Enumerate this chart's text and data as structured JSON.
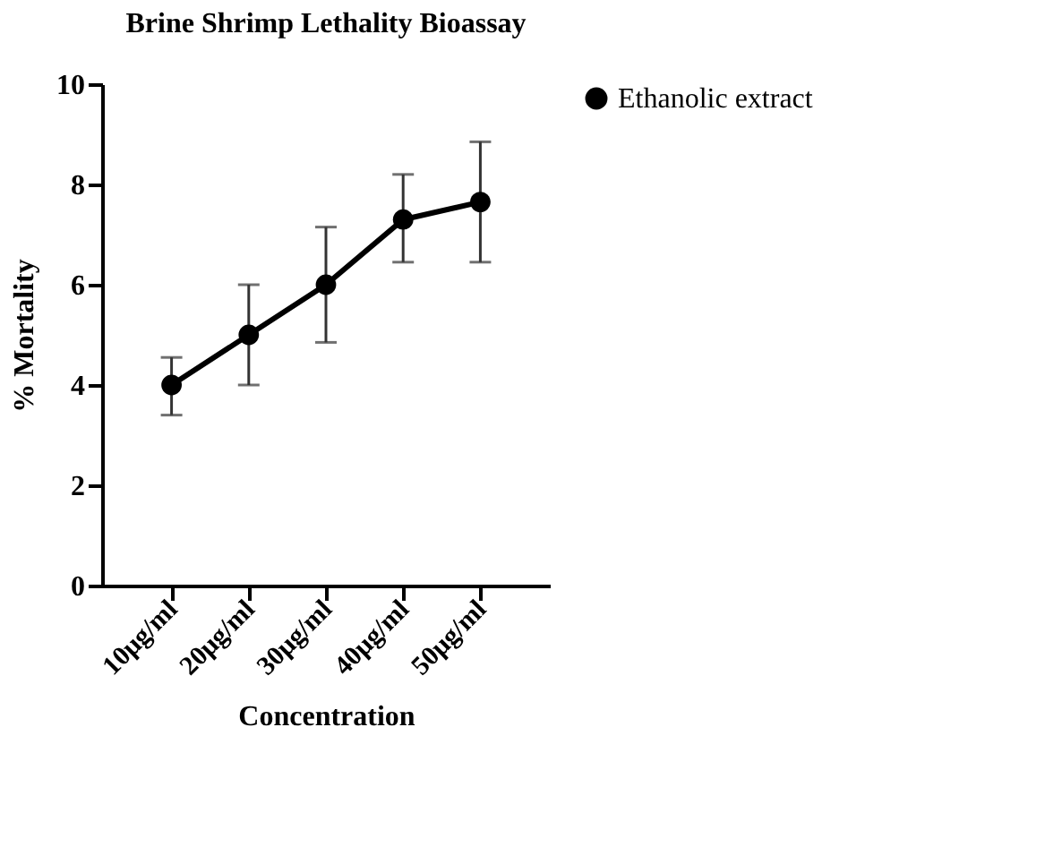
{
  "chart_data": {
    "type": "line",
    "title": "Brine Shrimp Lethality Bioassay",
    "xlabel": "Concentration",
    "ylabel": "% Mortality",
    "categories": [
      "10μg/ml",
      "20μg/ml",
      "30μg/ml",
      "40μg/ml",
      "50μg/ml"
    ],
    "series": [
      {
        "name": "Ethanolic extract",
        "color": "#000000",
        "values": [
          4.0,
          5.0,
          6.0,
          7.3,
          7.65
        ],
        "errors": [
          [
            3.4,
            4.55
          ],
          [
            4.0,
            6.0
          ],
          [
            4.85,
            7.15
          ],
          [
            6.45,
            8.2
          ],
          [
            6.45,
            8.85
          ]
        ]
      }
    ],
    "ylim": [
      0,
      10
    ],
    "yticks": [
      0,
      2,
      4,
      6,
      8,
      10
    ],
    "grid": false,
    "legend": "top right",
    "marker": "circle",
    "line_style": "solid"
  }
}
